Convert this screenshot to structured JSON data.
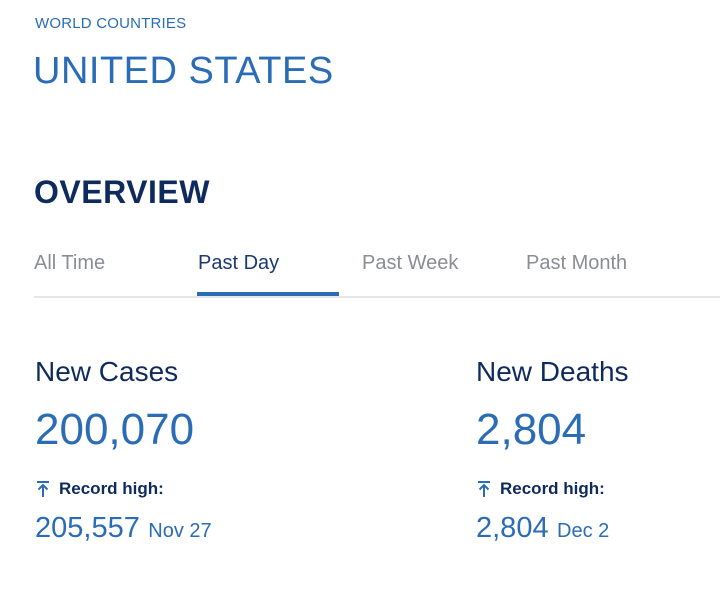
{
  "breadcrumb": "WORLD COUNTRIES",
  "title": "UNITED STATES",
  "overview": {
    "heading": "OVERVIEW",
    "tabs": [
      {
        "label": "All Time",
        "active": false
      },
      {
        "label": "Past Day",
        "active": true
      },
      {
        "label": "Past Week",
        "active": false
      },
      {
        "label": "Past Month",
        "active": false
      }
    ]
  },
  "stats": {
    "cases": {
      "label": "New Cases",
      "value": "200,070",
      "record_label": "Record high:",
      "record_value": "205,557",
      "record_date": "Nov 27"
    },
    "deaths": {
      "label": "New Deaths",
      "value": "2,804",
      "record_label": "Record high:",
      "record_value": "2,804",
      "record_date": "Dec 2"
    }
  },
  "icons": {
    "record": "arrow-up-to-line-icon"
  },
  "colors": {
    "accent": "#2a6cb5",
    "heading": "#0f2a5c",
    "inactive_tab": "#8a8d93",
    "divider": "#e4e6ea"
  }
}
